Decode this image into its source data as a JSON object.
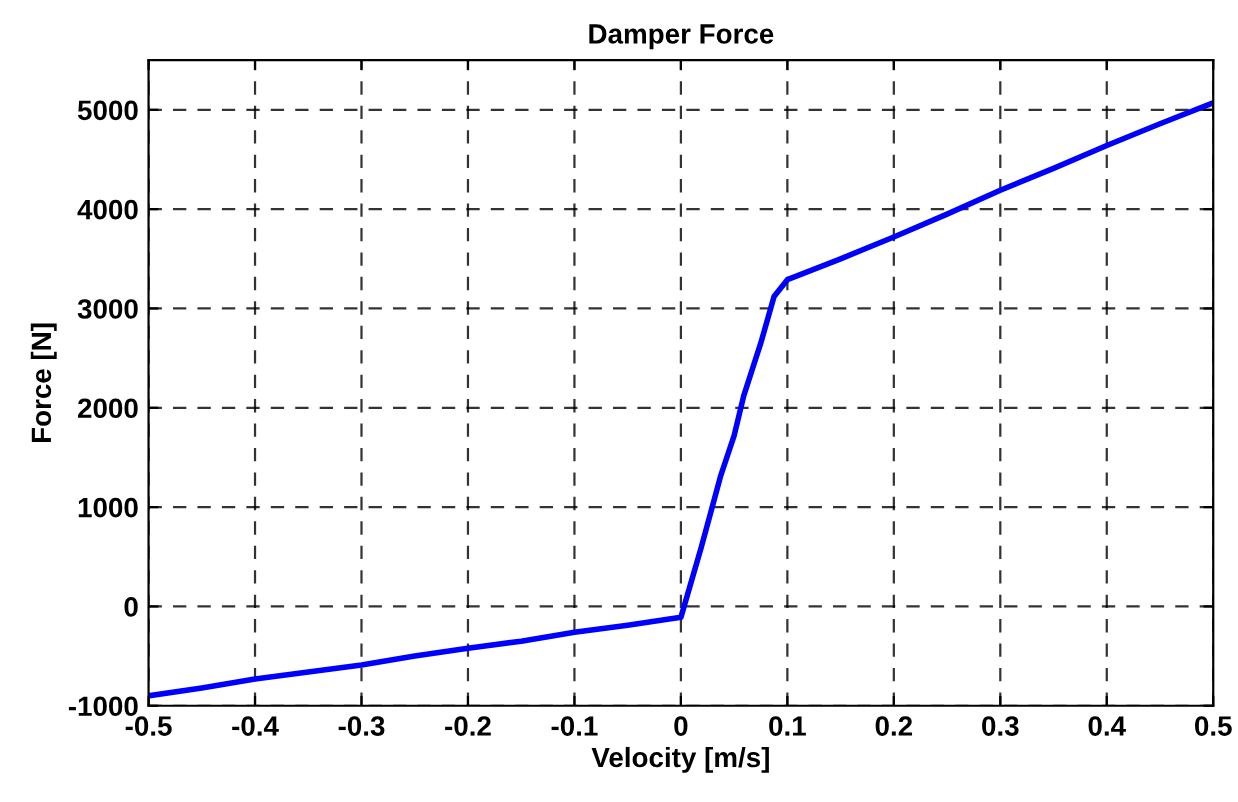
{
  "chart_data": {
    "type": "line",
    "title": "Damper Force",
    "xlabel": "Velocity [m/s]",
    "ylabel": "Force [N]",
    "x": [
      -0.5,
      -0.45,
      -0.4,
      -0.35,
      -0.3,
      -0.25,
      -0.2,
      -0.15,
      -0.1,
      -0.05,
      0,
      0.019,
      0.0375,
      0.05,
      0.059,
      0.075,
      0.0875,
      0.1,
      0.15,
      0.2,
      0.25,
      0.3,
      0.35,
      0.4,
      0.45,
      0.5
    ],
    "series": [
      {
        "color": "#0000ff",
        "values": [
          -900,
          -820,
          -730,
          -660,
          -590,
          -500,
          -420,
          -350,
          -260,
          -190,
          -110,
          590,
          1320,
          1720,
          2120,
          2650,
          3120,
          3290,
          3500,
          3720,
          3950,
          4190,
          4410,
          4640,
          4860,
          5070
        ]
      }
    ],
    "xlim": [
      -0.5,
      0.5
    ],
    "xticks": [
      -0.5,
      -0.4,
      -0.3,
      -0.2,
      -0.1,
      0,
      0.1,
      0.2,
      0.3,
      0.4,
      0.5
    ],
    "ylim": [
      -1000,
      5500
    ],
    "yticks": [
      -1000,
      0,
      1000,
      2000,
      3000,
      4000,
      5000
    ],
    "grid": true,
    "marker": "none",
    "line_style": "solid",
    "legend": false
  }
}
